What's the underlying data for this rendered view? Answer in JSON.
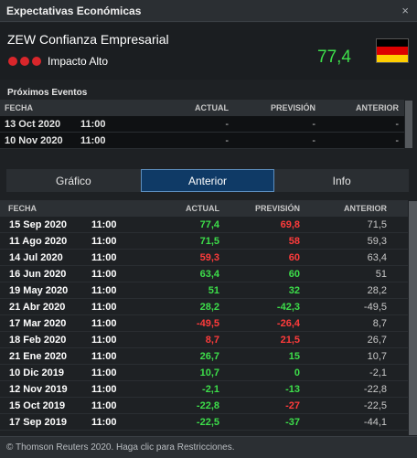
{
  "window": {
    "title": "Expectativas Económicas",
    "close_icon": "×"
  },
  "event": {
    "name": "ZEW Confianza Empresarial",
    "impact_label": "Impacto Alto",
    "value": "77,4",
    "country_flag": "germany-flag",
    "value_color": "#3dde4a"
  },
  "upcoming": {
    "title": "Próximos Eventos",
    "headers": {
      "date": "FECHA",
      "actual": "ACTUAL",
      "forecast": "PREVISIÓN",
      "previous": "ANTERIOR"
    },
    "rows": [
      {
        "date": "13 Oct 2020",
        "time": "11:00",
        "actual": "-",
        "forecast": "-",
        "previous": "-"
      },
      {
        "date": "10 Nov 2020",
        "time": "11:00",
        "actual": "-",
        "forecast": "-",
        "previous": "-"
      }
    ]
  },
  "tabs": [
    {
      "label": "Gráfico",
      "active": false
    },
    {
      "label": "Anterior",
      "active": true
    },
    {
      "label": "Info",
      "active": false
    }
  ],
  "history": {
    "headers": {
      "date": "FECHA",
      "actual": "ACTUAL",
      "forecast": "PREVISIÓN",
      "previous": "ANTERIOR"
    },
    "rows": [
      {
        "date": "15 Sep 2020",
        "time": "11:00",
        "actual": "77,4",
        "actual_color": "green",
        "forecast": "69,8",
        "forecast_color": "red",
        "previous": "71,5"
      },
      {
        "date": "11 Ago 2020",
        "time": "11:00",
        "actual": "71,5",
        "actual_color": "green",
        "forecast": "58",
        "forecast_color": "red",
        "previous": "59,3"
      },
      {
        "date": "14 Jul 2020",
        "time": "11:00",
        "actual": "59,3",
        "actual_color": "red",
        "forecast": "60",
        "forecast_color": "red",
        "previous": "63,4"
      },
      {
        "date": "16 Jun 2020",
        "time": "11:00",
        "actual": "63,4",
        "actual_color": "green",
        "forecast": "60",
        "forecast_color": "green",
        "previous": "51"
      },
      {
        "date": "19 May 2020",
        "time": "11:00",
        "actual": "51",
        "actual_color": "green",
        "forecast": "32",
        "forecast_color": "green",
        "previous": "28,2"
      },
      {
        "date": "21 Abr 2020",
        "time": "11:00",
        "actual": "28,2",
        "actual_color": "green",
        "forecast": "-42,3",
        "forecast_color": "green",
        "previous": "-49,5"
      },
      {
        "date": "17 Mar 2020",
        "time": "11:00",
        "actual": "-49,5",
        "actual_color": "red",
        "forecast": "-26,4",
        "forecast_color": "red",
        "previous": "8,7"
      },
      {
        "date": "18 Feb 2020",
        "time": "11:00",
        "actual": "8,7",
        "actual_color": "red",
        "forecast": "21,5",
        "forecast_color": "red",
        "previous": "26,7"
      },
      {
        "date": "21 Ene 2020",
        "time": "11:00",
        "actual": "26,7",
        "actual_color": "green",
        "forecast": "15",
        "forecast_color": "green",
        "previous": "10,7"
      },
      {
        "date": "10 Dic 2019",
        "time": "11:00",
        "actual": "10,7",
        "actual_color": "green",
        "forecast": "0",
        "forecast_color": "green",
        "previous": "-2,1"
      },
      {
        "date": "12 Nov 2019",
        "time": "11:00",
        "actual": "-2,1",
        "actual_color": "green",
        "forecast": "-13",
        "forecast_color": "green",
        "previous": "-22,8"
      },
      {
        "date": "15 Oct 2019",
        "time": "11:00",
        "actual": "-22,8",
        "actual_color": "green",
        "forecast": "-27",
        "forecast_color": "red",
        "previous": "-22,5"
      },
      {
        "date": "17 Sep 2019",
        "time": "11:00",
        "actual": "-22,5",
        "actual_color": "green",
        "forecast": "-37",
        "forecast_color": "green",
        "previous": "-44,1"
      }
    ]
  },
  "footer": {
    "text": "© Thomson Reuters 2020. Haga clic para Restricciones."
  },
  "colors": {
    "green": "#3dde4a",
    "red": "#ff3b3b",
    "accent_tab": "#0f3a66",
    "impact_dot": "#d9262b"
  }
}
